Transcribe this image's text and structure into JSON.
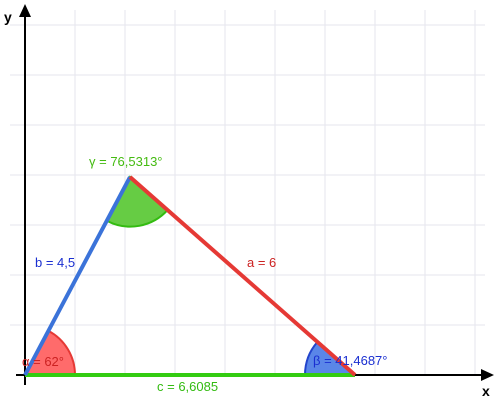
{
  "axes": {
    "x_label": "x",
    "y_label": "y"
  },
  "triangle": {
    "side_a": "a = 6",
    "side_b": "b = 4,5",
    "side_c": "c = 6,6085",
    "angle_alpha": "α = 62°",
    "angle_beta": "β = 41,4687°",
    "angle_gamma": "γ = 76,5313°"
  },
  "colors": {
    "side_a": "#e53935",
    "side_b": "#3b73d9",
    "side_c": "#33cc11",
    "alpha_fill": "#ff6b6b",
    "alpha_stroke": "#e53935",
    "beta_fill": "#5a86e8",
    "beta_stroke": "#2244cc",
    "gamma_fill": "#66cc44",
    "gamma_stroke": "#33bb11",
    "grid": "#e6e6ee",
    "axis": "#000000",
    "label_a": "#cc2222",
    "label_b": "#1a2fd1",
    "label_c": "#33bb11",
    "label_alpha": "#cc2222",
    "label_beta": "#1a2fd1",
    "label_gamma": "#44bb11"
  }
}
